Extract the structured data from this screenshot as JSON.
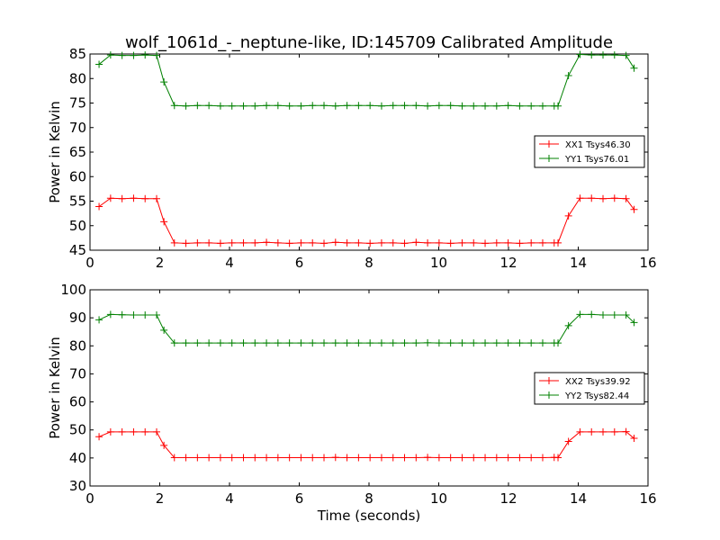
{
  "title": "wolf_1061d_-_neptune-like, ID:145709 Calibrated Amplitude",
  "colors": {
    "xx": "#ff0000",
    "yy": "#008000",
    "frame": "#000000"
  },
  "chart_data": [
    {
      "type": "line",
      "title": "wolf_1061d_-_neptune-like, ID:145709 Calibrated Amplitude",
      "xlabel": "",
      "ylabel": "Power in Kelvin",
      "xlim": [
        0,
        16
      ],
      "ylim": [
        45,
        85
      ],
      "xticks": [
        0,
        2,
        4,
        6,
        8,
        10,
        12,
        14,
        16
      ],
      "yticks": [
        45,
        50,
        55,
        60,
        65,
        70,
        75,
        80,
        85
      ],
      "grid": false,
      "legend": "center-right",
      "x": [
        0.26,
        0.59,
        0.92,
        1.25,
        1.58,
        1.91,
        2.12,
        2.42,
        2.75,
        3.08,
        3.41,
        3.74,
        4.07,
        4.4,
        4.73,
        5.06,
        5.39,
        5.72,
        6.05,
        6.38,
        6.71,
        7.04,
        7.37,
        7.7,
        8.03,
        8.36,
        8.69,
        9.02,
        9.35,
        9.68,
        10.01,
        10.34,
        10.67,
        11.0,
        11.33,
        11.66,
        11.99,
        12.32,
        12.65,
        12.98,
        13.31,
        13.42,
        13.72,
        14.05,
        14.38,
        14.71,
        15.04,
        15.37,
        15.6
      ],
      "series": [
        {
          "name": "XX1 Tsys46.30",
          "color": "#ff0000",
          "values": [
            53.9,
            55.6,
            55.5,
            55.6,
            55.5,
            55.5,
            50.8,
            46.5,
            46.4,
            46.5,
            46.5,
            46.4,
            46.5,
            46.5,
            46.5,
            46.6,
            46.5,
            46.4,
            46.5,
            46.5,
            46.4,
            46.6,
            46.5,
            46.5,
            46.4,
            46.5,
            46.5,
            46.4,
            46.6,
            46.5,
            46.5,
            46.4,
            46.5,
            46.5,
            46.4,
            46.5,
            46.5,
            46.4,
            46.5,
            46.5,
            46.5,
            46.5,
            52.0,
            55.6,
            55.6,
            55.5,
            55.6,
            55.5,
            53.3
          ]
        },
        {
          "name": "YY1 Tsys76.01",
          "color": "#008000",
          "values": [
            82.9,
            84.8,
            84.7,
            84.7,
            84.8,
            84.7,
            79.3,
            74.5,
            74.4,
            74.5,
            74.5,
            74.4,
            74.4,
            74.4,
            74.4,
            74.5,
            74.5,
            74.4,
            74.4,
            74.5,
            74.5,
            74.4,
            74.5,
            74.5,
            74.5,
            74.4,
            74.5,
            74.5,
            74.5,
            74.4,
            74.5,
            74.5,
            74.4,
            74.4,
            74.4,
            74.4,
            74.5,
            74.4,
            74.4,
            74.4,
            74.4,
            74.4,
            80.6,
            84.9,
            84.8,
            84.8,
            84.8,
            84.7,
            82.1
          ]
        }
      ]
    },
    {
      "type": "line",
      "title": "",
      "xlabel": "Time (seconds)",
      "ylabel": "Power in Kelvin",
      "xlim": [
        0,
        16
      ],
      "ylim": [
        30,
        100
      ],
      "xticks": [
        0,
        2,
        4,
        6,
        8,
        10,
        12,
        14,
        16
      ],
      "yticks": [
        30,
        40,
        50,
        60,
        70,
        80,
        90,
        100
      ],
      "grid": false,
      "legend": "center-right",
      "x": [
        0.26,
        0.59,
        0.92,
        1.25,
        1.58,
        1.91,
        2.12,
        2.42,
        2.75,
        3.08,
        3.41,
        3.74,
        4.07,
        4.4,
        4.73,
        5.06,
        5.39,
        5.72,
        6.05,
        6.38,
        6.71,
        7.04,
        7.37,
        7.7,
        8.03,
        8.36,
        8.69,
        9.02,
        9.35,
        9.68,
        10.01,
        10.34,
        10.67,
        11.0,
        11.33,
        11.66,
        11.99,
        12.32,
        12.65,
        12.98,
        13.31,
        13.42,
        13.72,
        14.05,
        14.38,
        14.71,
        15.04,
        15.37,
        15.6
      ],
      "series": [
        {
          "name": "XX2 Tsys39.92",
          "color": "#ff0000",
          "values": [
            47.6,
            49.3,
            49.3,
            49.3,
            49.3,
            49.3,
            44.5,
            40.1,
            40.1,
            40.1,
            40.1,
            40.1,
            40.1,
            40.1,
            40.1,
            40.1,
            40.1,
            40.1,
            40.1,
            40.1,
            40.1,
            40.2,
            40.1,
            40.1,
            40.1,
            40.1,
            40.1,
            40.1,
            40.1,
            40.2,
            40.1,
            40.1,
            40.1,
            40.1,
            40.1,
            40.1,
            40.1,
            40.1,
            40.1,
            40.1,
            40.2,
            40.1,
            45.9,
            49.3,
            49.3,
            49.3,
            49.3,
            49.4,
            47.0
          ]
        },
        {
          "name": "YY2 Tsys82.44",
          "color": "#008000",
          "values": [
            89.3,
            91.2,
            91.1,
            91.0,
            91.0,
            91.0,
            85.6,
            81.0,
            81.0,
            81.0,
            81.0,
            81.0,
            81.0,
            81.0,
            81.0,
            81.0,
            81.0,
            81.0,
            81.0,
            81.0,
            81.0,
            81.0,
            81.0,
            81.0,
            81.0,
            81.0,
            81.0,
            81.0,
            81.0,
            81.1,
            81.0,
            81.0,
            81.0,
            81.0,
            81.0,
            81.0,
            81.0,
            81.0,
            81.0,
            81.0,
            81.0,
            81.0,
            87.2,
            91.2,
            91.2,
            91.0,
            91.0,
            91.0,
            88.3
          ]
        }
      ]
    }
  ]
}
